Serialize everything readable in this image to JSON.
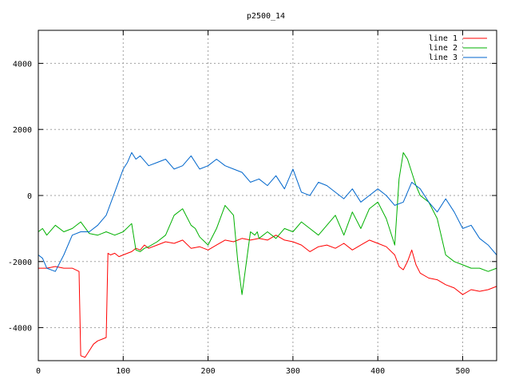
{
  "chart_data": {
    "type": "line",
    "title": "p2500_14",
    "xlim": [
      0,
      540
    ],
    "ylim": [
      -5000,
      5000
    ],
    "x_ticks": [
      0,
      100,
      200,
      300,
      400,
      500
    ],
    "y_ticks": [
      -4000,
      -2000,
      0,
      2000,
      4000
    ],
    "grid": true,
    "legend_position": "top-right",
    "series": [
      {
        "name": "line 1",
        "color": "#ff0000",
        "x": [
          0,
          10,
          20,
          30,
          40,
          48,
          50,
          55,
          60,
          65,
          70,
          75,
          80,
          82,
          85,
          90,
          95,
          100,
          105,
          110,
          115,
          120,
          125,
          130,
          140,
          150,
          160,
          170,
          180,
          190,
          200,
          210,
          220,
          230,
          240,
          250,
          260,
          270,
          280,
          290,
          300,
          310,
          320,
          330,
          340,
          350,
          360,
          370,
          380,
          390,
          400,
          410,
          420,
          425,
          430,
          435,
          440,
          445,
          450,
          460,
          470,
          480,
          490,
          500,
          510,
          520,
          530,
          540
        ],
        "y": [
          -2200,
          -2200,
          -2150,
          -2200,
          -2200,
          -2300,
          -4850,
          -4900,
          -4700,
          -4500,
          -4400,
          -4350,
          -4300,
          -1750,
          -1800,
          -1750,
          -1850,
          -1800,
          -1750,
          -1700,
          -1600,
          -1650,
          -1500,
          -1600,
          -1500,
          -1400,
          -1450,
          -1350,
          -1600,
          -1550,
          -1650,
          -1500,
          -1350,
          -1400,
          -1300,
          -1350,
          -1300,
          -1350,
          -1200,
          -1350,
          -1400,
          -1500,
          -1700,
          -1550,
          -1500,
          -1600,
          -1450,
          -1650,
          -1500,
          -1350,
          -1450,
          -1550,
          -1800,
          -2150,
          -2250,
          -2000,
          -1650,
          -2100,
          -2350,
          -2500,
          -2550,
          -2700,
          -2800,
          -3000,
          -2850,
          -2900,
          -2850,
          -2750
        ]
      },
      {
        "name": "line 2",
        "color": "#00b000",
        "x": [
          0,
          5,
          10,
          20,
          30,
          40,
          50,
          60,
          70,
          80,
          90,
          100,
          110,
          115,
          120,
          125,
          130,
          140,
          150,
          160,
          170,
          180,
          185,
          190,
          200,
          210,
          220,
          230,
          235,
          240,
          250,
          255,
          258,
          260,
          270,
          280,
          290,
          300,
          310,
          320,
          330,
          340,
          350,
          360,
          370,
          380,
          390,
          400,
          410,
          420,
          425,
          430,
          435,
          440,
          445,
          450,
          460,
          470,
          480,
          490,
          500,
          510,
          520,
          530,
          540
        ],
        "y": [
          -1100,
          -1000,
          -1200,
          -900,
          -1100,
          -1000,
          -800,
          -1150,
          -1200,
          -1100,
          -1200,
          -1100,
          -850,
          -1650,
          -1700,
          -1600,
          -1550,
          -1400,
          -1200,
          -600,
          -400,
          -900,
          -1000,
          -1250,
          -1500,
          -1000,
          -300,
          -600,
          -2000,
          -3000,
          -1100,
          -1200,
          -1100,
          -1300,
          -1100,
          -1300,
          -1000,
          -1100,
          -800,
          -1000,
          -1200,
          -900,
          -600,
          -1200,
          -500,
          -1000,
          -400,
          -200,
          -700,
          -1500,
          500,
          1300,
          1100,
          700,
          300,
          0,
          -200,
          -700,
          -1800,
          -2000,
          -2100,
          -2200,
          -2200,
          -2300,
          -2200
        ]
      },
      {
        "name": "line 3",
        "color": "#0066cc",
        "x": [
          0,
          5,
          10,
          20,
          30,
          40,
          50,
          60,
          70,
          80,
          90,
          100,
          105,
          110,
          115,
          120,
          130,
          140,
          150,
          160,
          170,
          180,
          190,
          200,
          210,
          220,
          230,
          240,
          250,
          260,
          270,
          280,
          290,
          300,
          310,
          320,
          330,
          340,
          350,
          360,
          370,
          380,
          390,
          400,
          410,
          420,
          430,
          440,
          450,
          460,
          470,
          480,
          490,
          500,
          510,
          520,
          530,
          540
        ],
        "y": [
          -1800,
          -1900,
          -2200,
          -2300,
          -1800,
          -1200,
          -1100,
          -1100,
          -900,
          -600,
          100,
          800,
          1000,
          1300,
          1100,
          1200,
          900,
          1000,
          1100,
          800,
          900,
          1200,
          800,
          900,
          1100,
          900,
          800,
          700,
          400,
          500,
          300,
          600,
          200,
          800,
          100,
          0,
          400,
          300,
          100,
          -100,
          200,
          -200,
          0,
          200,
          0,
          -300,
          -200,
          400,
          200,
          -200,
          -500,
          -100,
          -500,
          -1000,
          -900,
          -1300,
          -1500,
          -1800
        ]
      }
    ]
  }
}
